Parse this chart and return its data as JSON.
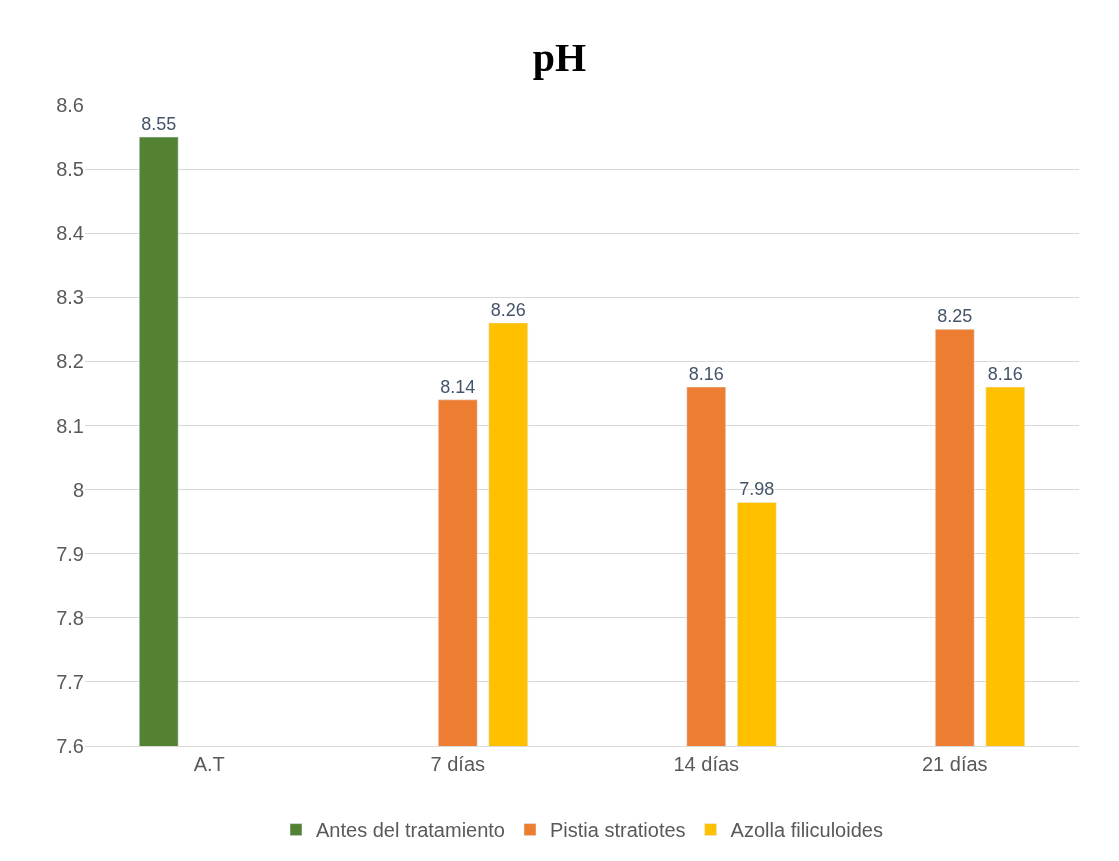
{
  "chart_data": {
    "type": "bar",
    "title": "pH",
    "categories": [
      "A.T",
      "7 días",
      "14 días",
      "21 días"
    ],
    "series": [
      {
        "name": "Antes del tratamiento",
        "color": "#548235",
        "values": [
          8.55,
          null,
          null,
          null
        ]
      },
      {
        "name": "Pistia stratiotes",
        "color": "#ed7d31",
        "values": [
          null,
          8.14,
          8.16,
          8.25
        ]
      },
      {
        "name": "Azolla filiculoides",
        "color": "#ffc000",
        "values": [
          null,
          8.26,
          7.98,
          8.16
        ]
      }
    ],
    "ylim": [
      7.6,
      8.6
    ],
    "yticks": [
      7.6,
      7.7,
      7.8,
      7.9,
      8,
      8.1,
      8.2,
      8.3,
      8.4,
      8.5,
      8.6
    ],
    "grid": "y",
    "legend": "bottom",
    "data_labels": true
  }
}
